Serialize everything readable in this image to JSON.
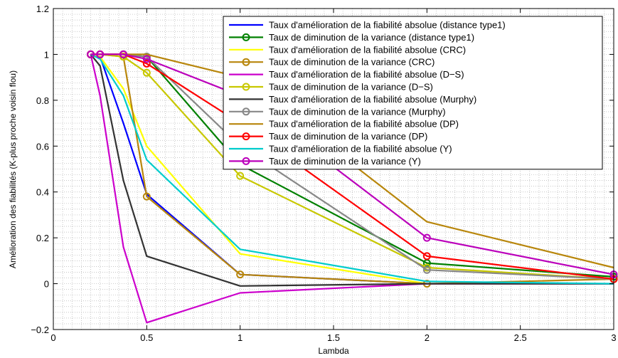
{
  "chart_data": {
    "type": "line",
    "title": "",
    "xlabel": "Lambda",
    "ylabel": "Amélioration des fiabilités (K-plus proche voisin flou)",
    "xlim": [
      0,
      3
    ],
    "ylim": [
      -0.2,
      1.2
    ],
    "x_ticks": [
      "0",
      "0.5",
      "1",
      "1.5",
      "2",
      "2.5",
      "3"
    ],
    "y_ticks": [
      "−0.2",
      "0",
      "0.2",
      "0.4",
      "0.6",
      "0.8",
      "1",
      "1.2"
    ],
    "grid": "dotted",
    "legend_position": "top-right",
    "x": [
      0.2,
      0.25,
      0.375,
      0.5,
      1,
      2,
      3
    ],
    "series": [
      {
        "name": "Taux d'amélioration de la fiabilité absolue (distance type1)",
        "color": "#0000ff",
        "marker": "none",
        "values": [
          1.0,
          0.99,
          0.7,
          0.39,
          0.04,
          0.0,
          0.0
        ]
      },
      {
        "name": "Taux de diminution de la variance (distance type1)",
        "color": "#008000",
        "marker": "circle",
        "values": [
          1.0,
          1.0,
          1.0,
          0.99,
          0.52,
          0.09,
          0.03
        ]
      },
      {
        "name": "Taux d'amélioration de la fiabilité absolue (CRC)",
        "color": "#ffff00",
        "marker": "none",
        "values": [
          1.0,
          0.99,
          0.85,
          0.6,
          0.13,
          0.0,
          0.0
        ]
      },
      {
        "name": "Taux de diminution de la variance (CRC)",
        "color": "#b8860b",
        "marker": "circle",
        "values": [
          1.0,
          1.0,
          0.99,
          0.38,
          0.04,
          0.0,
          0.02
        ]
      },
      {
        "name": "Taux d'amélioration de la fiabilité absolue (D−S)",
        "color": "#cc00cc",
        "marker": "none",
        "values": [
          1.0,
          0.82,
          0.16,
          -0.17,
          -0.04,
          0.0,
          0.0
        ]
      },
      {
        "name": "Taux de diminution de la variance (D−S)",
        "color": "#c8c800",
        "marker": "circle",
        "values": [
          1.0,
          1.0,
          0.99,
          0.92,
          0.47,
          0.07,
          0.02
        ]
      },
      {
        "name": "Taux d'amélioration de la fiabilité absolue (Murphy)",
        "color": "#333333",
        "marker": "none",
        "values": [
          1.0,
          0.95,
          0.45,
          0.12,
          -0.01,
          0.0,
          0.0
        ]
      },
      {
        "name": "Taux de diminution de la variance (Murphy)",
        "color": "#888888",
        "marker": "circle",
        "values": [
          1.0,
          1.0,
          1.0,
          0.99,
          0.6,
          0.06,
          0.02
        ]
      },
      {
        "name": "Taux d'amélioration de la fiabilité absolue (DP)",
        "color": "#b8860b",
        "marker": "none",
        "values": [
          1.0,
          1.0,
          1.0,
          1.0,
          0.9,
          0.27,
          0.07
        ]
      },
      {
        "name": "Taux de diminution de la variance (DP)",
        "color": "#ff0000",
        "marker": "circle",
        "values": [
          1.0,
          1.0,
          1.0,
          0.96,
          0.7,
          0.12,
          0.02
        ]
      },
      {
        "name": "Taux d'amélioration de la fiabilité absolue (Y)",
        "color": "#00cccc",
        "marker": "none",
        "values": [
          1.0,
          0.98,
          0.82,
          0.54,
          0.15,
          0.01,
          0.0
        ]
      },
      {
        "name": "Taux de diminution de la variance (Y)",
        "color": "#bb00bb",
        "marker": "circle",
        "values": [
          1.0,
          1.0,
          1.0,
          0.98,
          0.82,
          0.2,
          0.04
        ]
      }
    ]
  }
}
